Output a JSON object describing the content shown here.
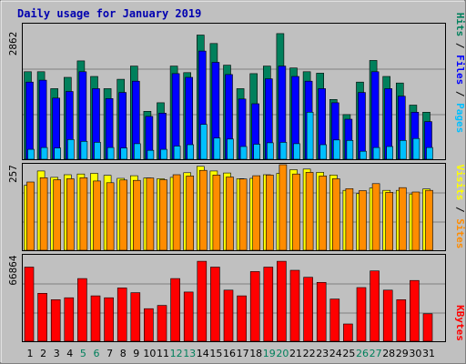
{
  "chart_data": [
    {
      "type": "bar",
      "title": "Daily usage for January 2019",
      "categories": [
        "1",
        "2",
        "3",
        "4",
        "5",
        "6",
        "7",
        "8",
        "9",
        "10",
        "11",
        "12",
        "13",
        "14",
        "15",
        "16",
        "17",
        "18",
        "19",
        "20",
        "21",
        "22",
        "23",
        "24",
        "25",
        "26",
        "27",
        "28",
        "29",
        "30",
        "31"
      ],
      "weekend_days": [
        5,
        6,
        12,
        13,
        19,
        20,
        26,
        27
      ],
      "ymax_label": "2862",
      "ylim": [
        0,
        2862
      ],
      "ylabel_parts": [
        "Pages",
        "Files",
        "Hits"
      ],
      "series": [
        {
          "name": "Hits",
          "color": "#00805c",
          "values": [
            1860,
            1860,
            1500,
            1740,
            2090,
            1760,
            1500,
            1700,
            1980,
            1020,
            1200,
            1980,
            1840,
            2640,
            2460,
            2000,
            1500,
            1820,
            1980,
            2670,
            1940,
            1860,
            1830,
            1270,
            950,
            1640,
            2100,
            1760,
            1620,
            1150,
            1000
          ]
        },
        {
          "name": "Files",
          "color": "#0000ff",
          "values": [
            1640,
            1680,
            1300,
            1440,
            1860,
            1500,
            1290,
            1420,
            1660,
            910,
            980,
            1820,
            1740,
            2300,
            2060,
            1800,
            1280,
            1180,
            1710,
            1980,
            1760,
            1660,
            1500,
            1200,
            850,
            1420,
            1860,
            1500,
            1340,
            1000,
            800
          ]
        },
        {
          "name": "Pages",
          "color": "#00bfff",
          "values": [
            210,
            250,
            240,
            420,
            380,
            360,
            250,
            240,
            330,
            190,
            210,
            280,
            310,
            740,
            450,
            430,
            270,
            320,
            350,
            360,
            330,
            1000,
            310,
            410,
            400,
            170,
            250,
            270,
            400,
            440,
            250
          ]
        }
      ]
    },
    {
      "type": "bar",
      "ymax_label": "257",
      "ylim": [
        0,
        257
      ],
      "ylabel_parts": [
        "Sites",
        "Visits"
      ],
      "series": [
        {
          "name": "Visits",
          "color": "#ffff00",
          "values": [
            195,
            238,
            219,
            227,
            229,
            231,
            225,
            216,
            224,
            217,
            215,
            219,
            233,
            252,
            238,
            232,
            215,
            216,
            227,
            231,
            242,
            244,
            234,
            226,
            180,
            170,
            187,
            180,
            180,
            169,
            184
          ]
        },
        {
          "name": "Sites",
          "color": "#ff8c00",
          "values": [
            205,
            218,
            212,
            215,
            218,
            208,
            203,
            211,
            210,
            217,
            212,
            227,
            223,
            240,
            226,
            220,
            214,
            224,
            226,
            257,
            229,
            234,
            223,
            215,
            185,
            179,
            200,
            174,
            188,
            175,
            180
          ]
        }
      ]
    },
    {
      "type": "bar",
      "ymax_label": "66864",
      "ylim": [
        0,
        66864
      ],
      "ylabel_parts": [
        "KBytes"
      ],
      "series": [
        {
          "name": "KBytes",
          "color": "#ff0000",
          "values": [
            58000,
            37500,
            32500,
            34000,
            49000,
            35500,
            34000,
            41700,
            38000,
            25500,
            28000,
            49000,
            38500,
            62500,
            58000,
            40000,
            35500,
            54500,
            58000,
            62500,
            55500,
            50000,
            46000,
            33000,
            13500,
            42000,
            55000,
            40000,
            32500,
            47500,
            21500
          ]
        }
      ]
    }
  ]
}
